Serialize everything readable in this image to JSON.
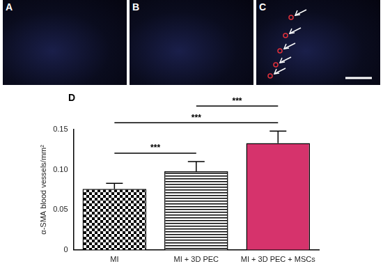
{
  "panels": [
    "A",
    "B",
    "C"
  ],
  "chart_data": {
    "type": "bar",
    "panel_label": "D",
    "categories": [
      "MI",
      "MI + 3D PEC",
      "MI + 3D PEC + MSCs"
    ],
    "values": [
      0.076,
      0.098,
      0.133
    ],
    "errors": [
      0.007,
      0.012,
      0.015
    ],
    "colors": [
      "#ffffff",
      "#ffffff",
      "#d6336c"
    ],
    "y_label": "α-SMA blood vessels/mm²",
    "ylim": [
      0,
      0.15
    ],
    "yticks": [
      0,
      0.05,
      {
        "value": 0.1,
        "label": "0.10"
      },
      0.15
    ],
    "grid": false,
    "comparisons": [
      {
        "between": [
          "MI",
          "MI + 3D PEC"
        ],
        "label": "***"
      },
      {
        "between": [
          "MI",
          "MI + 3D PEC + MSCs"
        ],
        "label": "***"
      },
      {
        "between": [
          "MI + 3D PEC",
          "MI + 3D PEC + MSCs"
        ],
        "label": "***"
      }
    ]
  }
}
